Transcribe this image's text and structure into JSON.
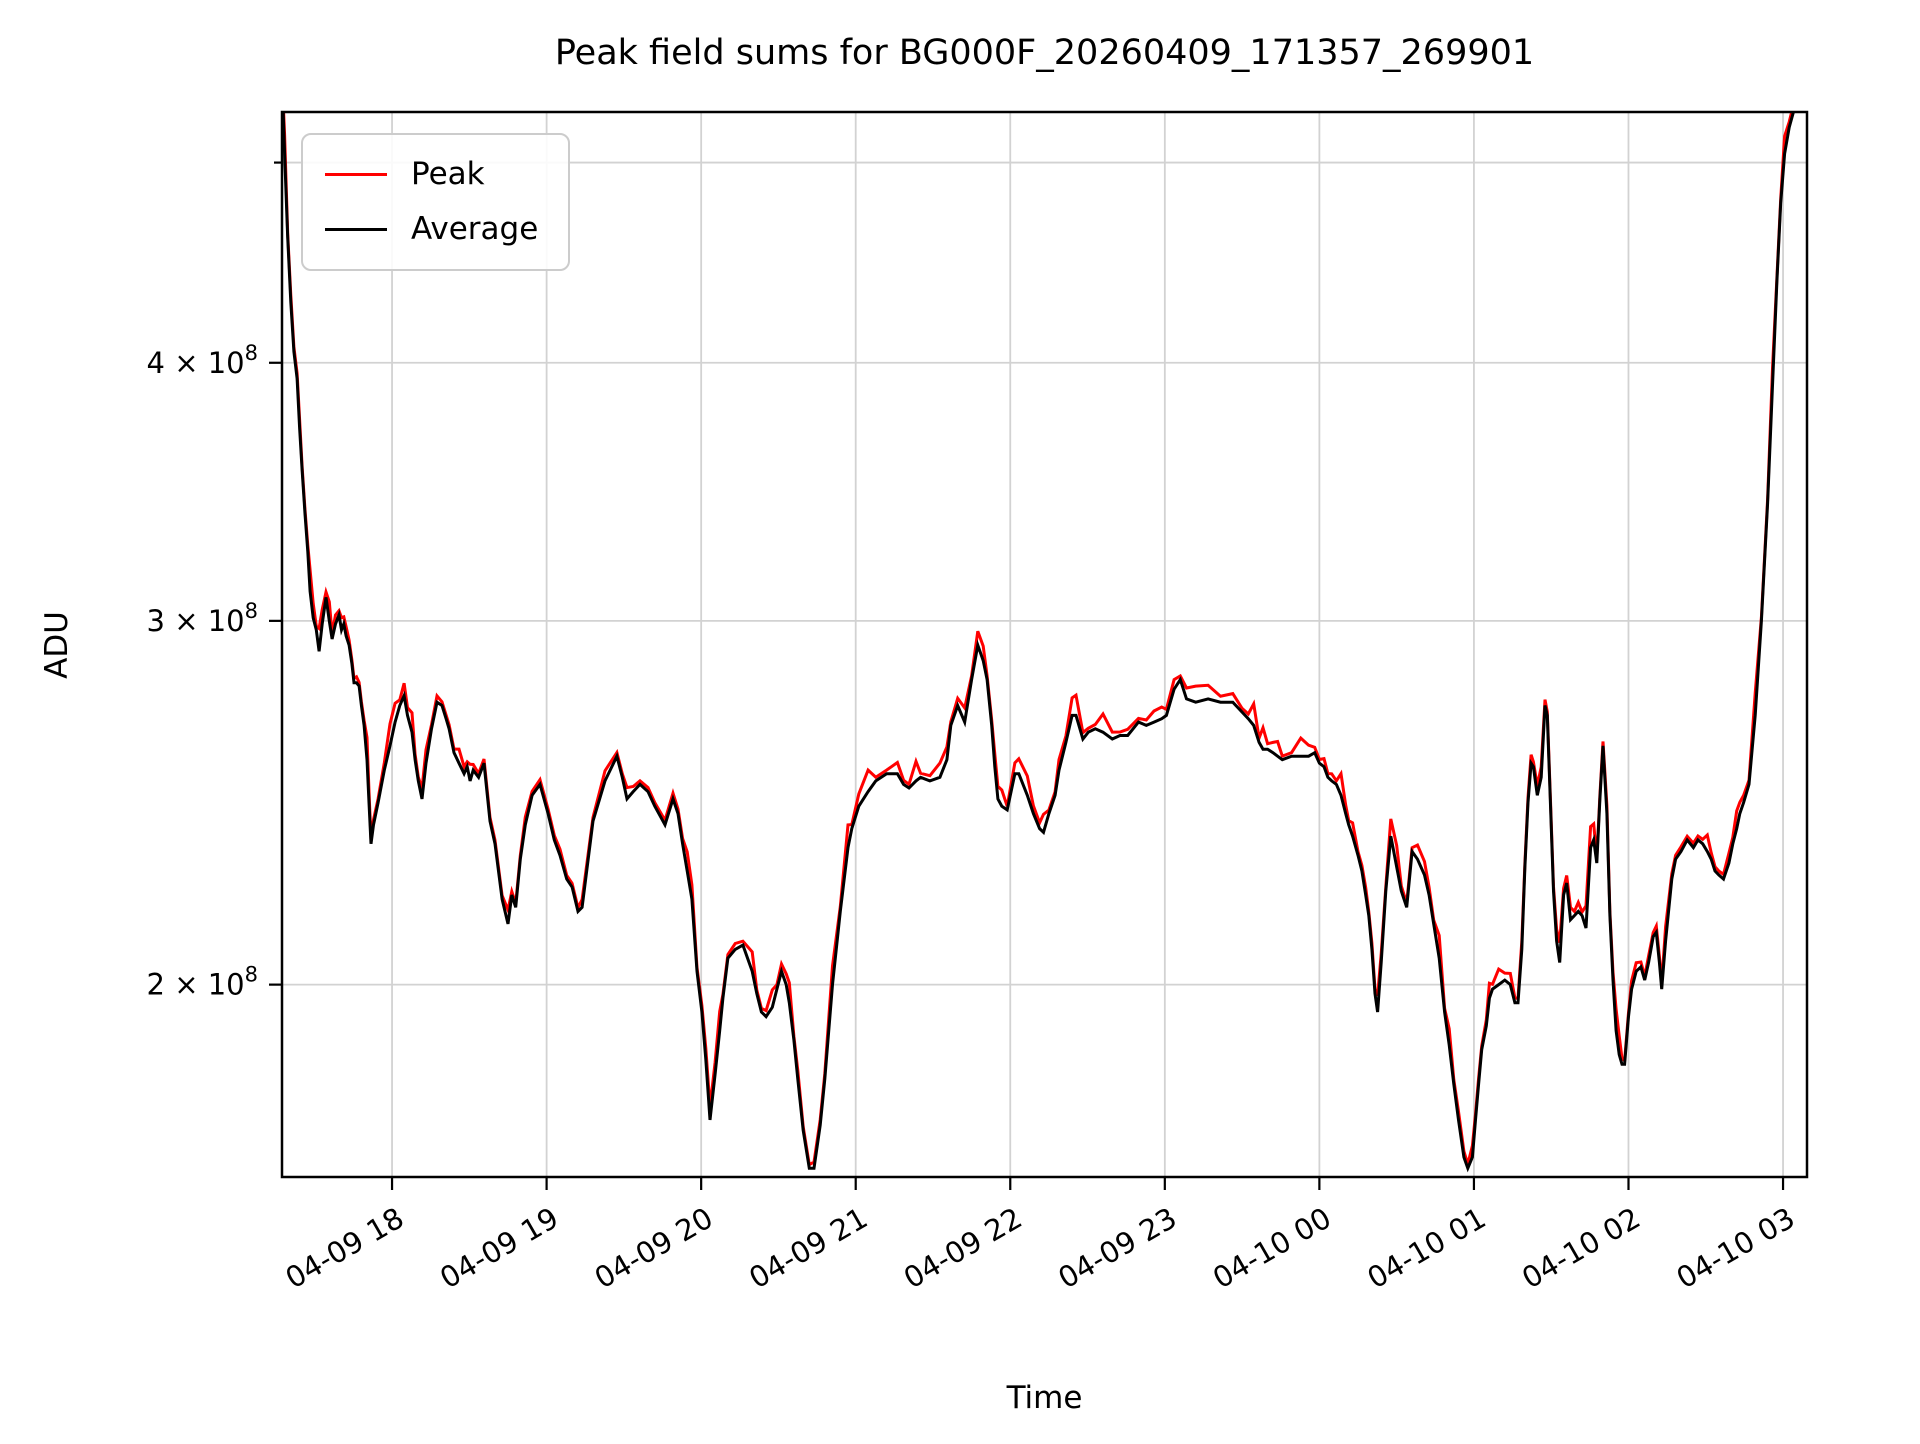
{
  "window": {
    "kind": "matplotlib-figure"
  },
  "chart_data": {
    "type": "line",
    "title": "Peak field sums for BG000F_20260409_171357_269901",
    "xlabel": "Time",
    "ylabel": "ADU",
    "grid": true,
    "legend_position": "upper-left",
    "y_scale": "log",
    "x_unit": "hours after 2026-04-09 17:00",
    "y_unit": "ADU (values below in units of 1e8)",
    "xlim_hours": [
      0.288,
      10.155
    ],
    "ylim": [
      161400000,
      529000000
    ],
    "x_ticks": [
      {
        "t": 1,
        "label": "04-09 18"
      },
      {
        "t": 2,
        "label": "04-09 19"
      },
      {
        "t": 3,
        "label": "04-09 20"
      },
      {
        "t": 4,
        "label": "04-09 21"
      },
      {
        "t": 5,
        "label": "04-09 22"
      },
      {
        "t": 6,
        "label": "04-09 23"
      },
      {
        "t": 7,
        "label": "04-10 00"
      },
      {
        "t": 8,
        "label": "04-10 01"
      },
      {
        "t": 9,
        "label": "04-10 02"
      },
      {
        "t": 10,
        "label": "04-10 03"
      }
    ],
    "y_ticks": [
      {
        "value": 500000000,
        "base": "",
        "sup": "",
        "minor": true
      },
      {
        "value": 400000000,
        "base": "4 × 10",
        "sup": "8",
        "minor": false
      },
      {
        "value": 300000000,
        "base": "3 × 10",
        "sup": "8",
        "minor": false
      },
      {
        "value": 200000000,
        "base": "2 × 10",
        "sup": "8",
        "minor": false
      }
    ],
    "series": [
      {
        "name": "Peak",
        "color": "#ff0000",
        "derived": "average_times_ratio",
        "offset_ratio": 1.004,
        "spike_ratio_extra": 0.022
      },
      {
        "name": "Average",
        "color": "#000000"
      }
    ],
    "average_points_t_v1e8": [
      [
        0.29,
        5.45
      ],
      [
        0.305,
        5.05
      ],
      [
        0.325,
        4.6
      ],
      [
        0.345,
        4.28
      ],
      [
        0.365,
        4.05
      ],
      [
        0.386,
        3.93
      ],
      [
        0.402,
        3.72
      ],
      [
        0.418,
        3.55
      ],
      [
        0.437,
        3.38
      ],
      [
        0.455,
        3.24
      ],
      [
        0.47,
        3.1
      ],
      [
        0.49,
        3.01
      ],
      [
        0.51,
        2.97
      ],
      [
        0.528,
        2.9
      ],
      [
        0.548,
        2.99
      ],
      [
        0.573,
        3.08
      ],
      [
        0.594,
        3.0
      ],
      [
        0.612,
        2.94
      ],
      [
        0.634,
        2.99
      ],
      [
        0.657,
        3.02
      ],
      [
        0.673,
        2.97
      ],
      [
        0.688,
        2.99
      ],
      [
        0.703,
        2.95
      ],
      [
        0.722,
        2.92
      ],
      [
        0.74,
        2.86
      ],
      [
        0.754,
        2.8
      ],
      [
        0.77,
        2.8
      ],
      [
        0.787,
        2.79
      ],
      [
        0.802,
        2.73
      ],
      [
        0.819,
        2.67
      ],
      [
        0.838,
        2.57
      ],
      [
        0.851,
        2.45
      ],
      [
        0.864,
        2.34
      ],
      [
        0.88,
        2.39
      ],
      [
        0.91,
        2.45
      ],
      [
        0.95,
        2.54
      ],
      [
        0.987,
        2.61
      ],
      [
        1.02,
        2.68
      ],
      [
        1.05,
        2.73
      ],
      [
        1.078,
        2.76
      ],
      [
        1.1,
        2.7
      ],
      [
        1.129,
        2.65
      ],
      [
        1.149,
        2.57
      ],
      [
        1.17,
        2.51
      ],
      [
        1.194,
        2.46
      ],
      [
        1.22,
        2.56
      ],
      [
        1.255,
        2.66
      ],
      [
        1.291,
        2.74
      ],
      [
        1.323,
        2.73
      ],
      [
        1.35,
        2.69
      ],
      [
        1.369,
        2.66
      ],
      [
        1.401,
        2.59
      ],
      [
        1.433,
        2.56
      ],
      [
        1.466,
        2.53
      ],
      [
        1.486,
        2.55
      ],
      [
        1.505,
        2.51
      ],
      [
        1.525,
        2.54
      ],
      [
        1.56,
        2.52
      ],
      [
        1.595,
        2.56
      ],
      [
        1.634,
        2.4
      ],
      [
        1.666,
        2.34
      ],
      [
        1.712,
        2.2
      ],
      [
        1.75,
        2.14
      ],
      [
        1.775,
        2.21
      ],
      [
        1.8,
        2.18
      ],
      [
        1.83,
        2.3
      ],
      [
        1.862,
        2.39
      ],
      [
        1.906,
        2.47
      ],
      [
        1.957,
        2.5
      ],
      [
        2.01,
        2.42
      ],
      [
        2.05,
        2.35
      ],
      [
        2.087,
        2.31
      ],
      [
        2.13,
        2.25
      ],
      [
        2.165,
        2.23
      ],
      [
        2.203,
        2.17
      ],
      [
        2.23,
        2.18
      ],
      [
        2.3,
        2.4
      ],
      [
        2.378,
        2.51
      ],
      [
        2.455,
        2.58
      ],
      [
        2.49,
        2.52
      ],
      [
        2.52,
        2.46
      ],
      [
        2.56,
        2.48
      ],
      [
        2.604,
        2.5
      ],
      [
        2.656,
        2.48
      ],
      [
        2.7,
        2.44
      ],
      [
        2.766,
        2.39
      ],
      [
        2.818,
        2.46
      ],
      [
        2.85,
        2.42
      ],
      [
        2.88,
        2.34
      ],
      [
        2.91,
        2.27
      ],
      [
        2.94,
        2.2
      ],
      [
        2.973,
        2.03
      ],
      [
        3.005,
        1.94
      ],
      [
        3.03,
        1.84
      ],
      [
        3.057,
        1.72
      ],
      [
        3.09,
        1.81
      ],
      [
        3.12,
        1.9
      ],
      [
        3.141,
        1.97
      ],
      [
        3.173,
        2.06
      ],
      [
        3.22,
        2.08
      ],
      [
        3.27,
        2.09
      ],
      [
        3.33,
        2.03
      ],
      [
        3.36,
        1.98
      ],
      [
        3.39,
        1.94
      ],
      [
        3.42,
        1.93
      ],
      [
        3.46,
        1.95
      ],
      [
        3.49,
        1.99
      ],
      [
        3.52,
        2.03
      ],
      [
        3.55,
        2.0
      ],
      [
        3.57,
        1.96
      ],
      [
        3.6,
        1.88
      ],
      [
        3.625,
        1.8
      ],
      [
        3.66,
        1.7
      ],
      [
        3.7,
        1.63
      ],
      [
        3.73,
        1.63
      ],
      [
        3.77,
        1.71
      ],
      [
        3.8,
        1.8
      ],
      [
        3.85,
        2.0
      ],
      [
        3.9,
        2.17
      ],
      [
        3.95,
        2.33
      ],
      [
        3.975,
        2.38
      ],
      [
        4.02,
        2.44
      ],
      [
        4.08,
        2.48
      ],
      [
        4.13,
        2.51
      ],
      [
        4.2,
        2.53
      ],
      [
        4.27,
        2.53
      ],
      [
        4.31,
        2.5
      ],
      [
        4.345,
        2.49
      ],
      [
        4.39,
        2.51
      ],
      [
        4.42,
        2.52
      ],
      [
        4.48,
        2.51
      ],
      [
        4.545,
        2.52
      ],
      [
        4.59,
        2.57
      ],
      [
        4.615,
        2.67
      ],
      [
        4.66,
        2.73
      ],
      [
        4.705,
        2.68
      ],
      [
        4.75,
        2.81
      ],
      [
        4.79,
        2.92
      ],
      [
        4.825,
        2.87
      ],
      [
        4.85,
        2.81
      ],
      [
        4.88,
        2.67
      ],
      [
        4.9,
        2.55
      ],
      [
        4.92,
        2.46
      ],
      [
        4.945,
        2.44
      ],
      [
        4.98,
        2.43
      ],
      [
        5.03,
        2.53
      ],
      [
        5.055,
        2.53
      ],
      [
        5.11,
        2.47
      ],
      [
        5.15,
        2.42
      ],
      [
        5.19,
        2.38
      ],
      [
        5.215,
        2.37
      ],
      [
        5.25,
        2.42
      ],
      [
        5.29,
        2.47
      ],
      [
        5.315,
        2.54
      ],
      [
        5.36,
        2.62
      ],
      [
        5.4,
        2.7
      ],
      [
        5.425,
        2.7
      ],
      [
        5.47,
        2.63
      ],
      [
        5.505,
        2.65
      ],
      [
        5.55,
        2.66
      ],
      [
        5.6,
        2.65
      ],
      [
        5.66,
        2.63
      ],
      [
        5.71,
        2.64
      ],
      [
        5.76,
        2.64
      ],
      [
        5.83,
        2.68
      ],
      [
        5.88,
        2.67
      ],
      [
        5.93,
        2.68
      ],
      [
        5.98,
        2.69
      ],
      [
        6.01,
        2.7
      ],
      [
        6.06,
        2.78
      ],
      [
        6.1,
        2.81
      ],
      [
        6.14,
        2.75
      ],
      [
        6.2,
        2.74
      ],
      [
        6.28,
        2.75
      ],
      [
        6.36,
        2.74
      ],
      [
        6.44,
        2.74
      ],
      [
        6.5,
        2.71
      ],
      [
        6.54,
        2.69
      ],
      [
        6.575,
        2.67
      ],
      [
        6.61,
        2.62
      ],
      [
        6.635,
        2.6
      ],
      [
        6.665,
        2.6
      ],
      [
        6.7,
        2.59
      ],
      [
        6.73,
        2.58
      ],
      [
        6.76,
        2.57
      ],
      [
        6.82,
        2.58
      ],
      [
        6.88,
        2.58
      ],
      [
        6.93,
        2.58
      ],
      [
        6.97,
        2.59
      ],
      [
        7.0,
        2.56
      ],
      [
        7.03,
        2.55
      ],
      [
        7.055,
        2.52
      ],
      [
        7.08,
        2.51
      ],
      [
        7.11,
        2.5
      ],
      [
        7.14,
        2.47
      ],
      [
        7.17,
        2.42
      ],
      [
        7.19,
        2.39
      ],
      [
        7.215,
        2.36
      ],
      [
        7.25,
        2.31
      ],
      [
        7.275,
        2.27
      ],
      [
        7.3,
        2.21
      ],
      [
        7.32,
        2.16
      ],
      [
        7.34,
        2.08
      ],
      [
        7.36,
        1.98
      ],
      [
        7.377,
        1.94
      ],
      [
        7.4,
        2.05
      ],
      [
        7.43,
        2.22
      ],
      [
        7.462,
        2.36
      ],
      [
        7.5,
        2.28
      ],
      [
        7.53,
        2.22
      ],
      [
        7.565,
        2.18
      ],
      [
        7.6,
        2.32
      ],
      [
        7.635,
        2.3
      ],
      [
        7.68,
        2.26
      ],
      [
        7.71,
        2.21
      ],
      [
        7.74,
        2.14
      ],
      [
        7.775,
        2.06
      ],
      [
        7.81,
        1.94
      ],
      [
        7.84,
        1.87
      ],
      [
        7.87,
        1.79
      ],
      [
        7.9,
        1.72
      ],
      [
        7.935,
        1.65
      ],
      [
        7.96,
        1.63
      ],
      [
        7.99,
        1.65
      ],
      [
        8.01,
        1.72
      ],
      [
        8.03,
        1.79
      ],
      [
        8.05,
        1.86
      ],
      [
        8.08,
        1.91
      ],
      [
        8.1,
        1.97
      ],
      [
        8.12,
        1.99
      ],
      [
        8.16,
        2.0
      ],
      [
        8.2,
        2.01
      ],
      [
        8.235,
        2.0
      ],
      [
        8.265,
        1.96
      ],
      [
        8.285,
        1.96
      ],
      [
        8.31,
        2.08
      ],
      [
        8.33,
        2.28
      ],
      [
        8.35,
        2.45
      ],
      [
        8.37,
        2.56
      ],
      [
        8.385,
        2.55
      ],
      [
        8.41,
        2.47
      ],
      [
        8.435,
        2.52
      ],
      [
        8.46,
        2.73
      ],
      [
        8.475,
        2.7
      ],
      [
        8.495,
        2.45
      ],
      [
        8.515,
        2.22
      ],
      [
        8.535,
        2.1
      ],
      [
        8.555,
        2.05
      ],
      [
        8.58,
        2.21
      ],
      [
        8.6,
        2.24
      ],
      [
        8.625,
        2.15
      ],
      [
        8.65,
        2.16
      ],
      [
        8.675,
        2.17
      ],
      [
        8.7,
        2.16
      ],
      [
        8.725,
        2.13
      ],
      [
        8.755,
        2.33
      ],
      [
        8.775,
        2.35
      ],
      [
        8.795,
        2.29
      ],
      [
        8.815,
        2.46
      ],
      [
        8.835,
        2.61
      ],
      [
        8.86,
        2.42
      ],
      [
        8.88,
        2.16
      ],
      [
        8.9,
        2.01
      ],
      [
        8.92,
        1.9
      ],
      [
        8.94,
        1.85
      ],
      [
        8.958,
        1.83
      ],
      [
        8.975,
        1.83
      ],
      [
        9.0,
        1.93
      ],
      [
        9.02,
        1.99
      ],
      [
        9.05,
        2.03
      ],
      [
        9.08,
        2.04
      ],
      [
        9.105,
        2.01
      ],
      [
        9.13,
        2.05
      ],
      [
        9.16,
        2.11
      ],
      [
        9.18,
        2.12
      ],
      [
        9.2,
        2.05
      ],
      [
        9.215,
        1.99
      ],
      [
        9.24,
        2.1
      ],
      [
        9.28,
        2.25
      ],
      [
        9.305,
        2.3
      ],
      [
        9.34,
        2.32
      ],
      [
        9.38,
        2.35
      ],
      [
        9.42,
        2.33
      ],
      [
        9.45,
        2.35
      ],
      [
        9.48,
        2.34
      ],
      [
        9.51,
        2.32
      ],
      [
        9.535,
        2.3
      ],
      [
        9.56,
        2.27
      ],
      [
        9.585,
        2.26
      ],
      [
        9.615,
        2.25
      ],
      [
        9.65,
        2.29
      ],
      [
        9.675,
        2.34
      ],
      [
        9.7,
        2.38
      ],
      [
        9.72,
        2.42
      ],
      [
        9.745,
        2.45
      ],
      [
        9.78,
        2.5
      ],
      [
        9.82,
        2.7
      ],
      [
        9.86,
        3.0
      ],
      [
        9.9,
        3.42
      ],
      [
        9.932,
        3.9
      ],
      [
        9.96,
        4.38
      ],
      [
        9.985,
        4.78
      ],
      [
        10.01,
        5.05
      ],
      [
        10.04,
        5.2
      ],
      [
        10.07,
        5.3
      ],
      [
        10.1,
        5.4
      ],
      [
        10.155,
        5.5
      ]
    ],
    "style": {
      "grid_color": "#d2d2d2",
      "spine_color": "#000000",
      "background": "#ffffff",
      "line_width": 3,
      "legend_border_color": "#cccccc"
    }
  }
}
